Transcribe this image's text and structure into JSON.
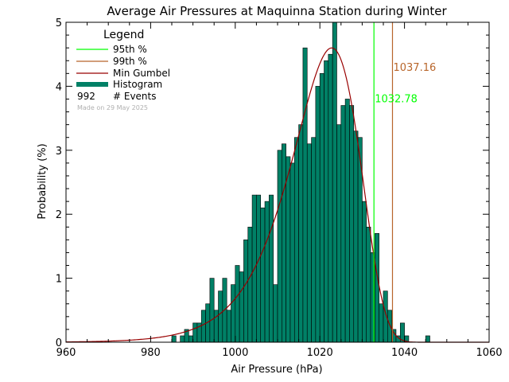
{
  "chart_data": {
    "type": "bar",
    "title": "Average Air Pressures at Maquinna Station during Winter",
    "xlabel": "Air Pressure (hPa)",
    "ylabel": "Probability (%)",
    "xlim": [
      960,
      1060
    ],
    "ylim": [
      0,
      5
    ],
    "xticks": [
      "960",
      "980",
      "1000",
      "1020",
      "1040",
      "1060"
    ],
    "yticks": [
      "0",
      "1",
      "2",
      "3",
      "4",
      "5"
    ],
    "bin_width": 1,
    "legend": {
      "title": "Legend",
      "placement": "top-left",
      "items": [
        {
          "label": "95th %",
          "color": "#00ff00"
        },
        {
          "label": "99th %",
          "color": "#b8652a"
        },
        {
          "label": "Min Gumbel",
          "color": "#990000"
        },
        {
          "label": "Histogram",
          "color": "#008066"
        }
      ],
      "events_count": "992",
      "events_label": "# Events",
      "made_on": "Made on 29 May 2025"
    },
    "percentiles": [
      {
        "name": "95th %",
        "value": 1032.78,
        "label": "1032.78",
        "color": "#00ff00"
      },
      {
        "name": "99th %",
        "value": 1037.16,
        "label": "1037.16",
        "color": "#b8652a"
      }
    ],
    "gumbel_curve": {
      "mode": 1022.8,
      "beta": 8.0,
      "peak": 4.6,
      "color": "#990000"
    },
    "histogram": {
      "bins_start": [
        985,
        986,
        987,
        988,
        989,
        990,
        991,
        992,
        993,
        994,
        995,
        996,
        997,
        998,
        999,
        1000,
        1001,
        1002,
        1003,
        1004,
        1005,
        1006,
        1007,
        1008,
        1009,
        1010,
        1011,
        1012,
        1013,
        1014,
        1015,
        1016,
        1017,
        1018,
        1019,
        1020,
        1021,
        1022,
        1023,
        1024,
        1025,
        1026,
        1027,
        1028,
        1029,
        1030,
        1031,
        1032,
        1033,
        1034,
        1035,
        1036,
        1037,
        1038,
        1039,
        1040,
        1041,
        1042,
        1043,
        1044,
        1045
      ],
      "values": [
        0.1,
        0,
        0.1,
        0.2,
        0.1,
        0.3,
        0.3,
        0.5,
        0.6,
        1.0,
        0.5,
        0.8,
        1.0,
        0.5,
        0.9,
        1.2,
        1.1,
        1.6,
        1.8,
        2.3,
        2.3,
        2.1,
        2.2,
        2.3,
        0.9,
        3.0,
        3.1,
        2.9,
        2.8,
        3.2,
        3.4,
        4.6,
        3.1,
        3.2,
        4.0,
        4.2,
        4.4,
        4.5,
        5.0,
        3.4,
        3.7,
        3.8,
        3.7,
        3.3,
        3.2,
        2.2,
        1.8,
        1.4,
        1.7,
        0.6,
        0.8,
        0.5,
        0.2,
        0.1,
        0.3,
        0.1,
        0,
        0,
        0,
        0,
        0.1
      ],
      "color": "#008066"
    }
  }
}
